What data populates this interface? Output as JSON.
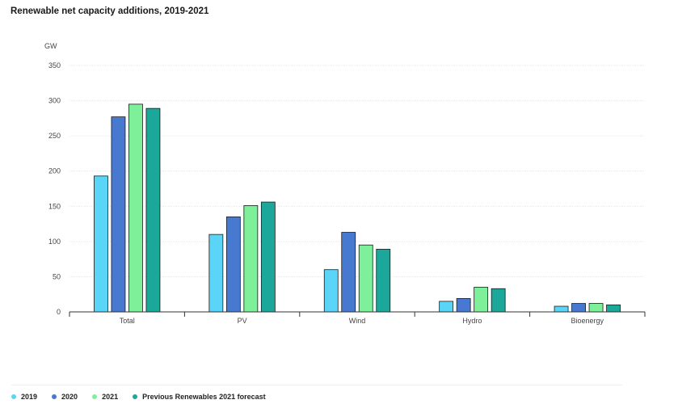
{
  "chart_data": {
    "type": "bar",
    "title": "Renewable net capacity additions, 2019-2021",
    "ylabel": "GW",
    "xlabel": "",
    "ylim": [
      0,
      350
    ],
    "yticks": [
      0,
      50,
      100,
      150,
      200,
      250,
      300,
      350
    ],
    "categories": [
      "Total",
      "PV",
      "Wind",
      "Hydro",
      "Bioenergy"
    ],
    "series": [
      {
        "name": "2019",
        "color": "#5ad5f7",
        "values": [
          193,
          110,
          60,
          15,
          8
        ]
      },
      {
        "name": "2020",
        "color": "#4879d0",
        "values": [
          277,
          135,
          113,
          19,
          12
        ]
      },
      {
        "name": "2021",
        "color": "#7ef09a",
        "values": [
          295,
          151,
          95,
          35,
          12
        ]
      },
      {
        "name": "Previous Renewables 2021 forecast",
        "color": "#1ba89a",
        "values": [
          289,
          156,
          89,
          33,
          10
        ]
      }
    ],
    "grid": true,
    "legend_position": "bottom-left"
  }
}
